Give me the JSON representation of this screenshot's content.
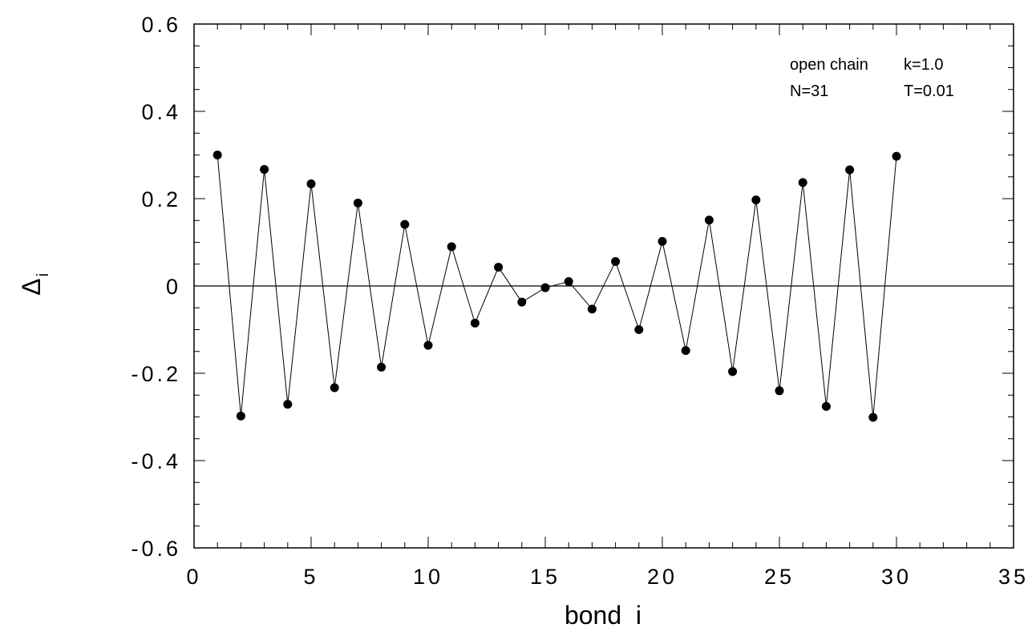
{
  "chart_data": {
    "type": "line",
    "xlabel": "bond  i",
    "ylabel": "Δ",
    "ylabel_subscript": "i",
    "xlim": [
      0,
      35
    ],
    "ylim": [
      -0.6,
      0.6
    ],
    "x_ticks": [
      0,
      5,
      10,
      15,
      20,
      25,
      30,
      35
    ],
    "x_tick_labels": [
      "0",
      "5",
      "10",
      "15",
      "20",
      "25",
      "30",
      "35"
    ],
    "y_ticks": [
      0.6,
      0.4,
      0.2,
      0,
      -0.2,
      -0.4,
      -0.6
    ],
    "y_tick_labels": [
      "0.6",
      "0.4",
      "0.2",
      "0",
      "-0.2",
      "-0.4",
      "-0.6"
    ],
    "grid": false,
    "reference_line_y": 0,
    "annotations": [
      "open chain",
      "k=1.0",
      "N=31",
      "T=0.01"
    ],
    "series": [
      {
        "marker": "filled-circle",
        "color": "#000000",
        "x": [
          1,
          2,
          3,
          4,
          5,
          6,
          7,
          8,
          9,
          10,
          11,
          12,
          13,
          14,
          15,
          16,
          17,
          18,
          19,
          20,
          21,
          22,
          23,
          24,
          25,
          26,
          27,
          28,
          29,
          30
        ],
        "y": [
          0.3,
          -0.298,
          0.267,
          -0.271,
          0.234,
          -0.233,
          0.19,
          -0.186,
          0.141,
          -0.136,
          0.09,
          -0.085,
          0.043,
          -0.037,
          -0.004,
          0.01,
          -0.053,
          0.056,
          -0.1,
          0.102,
          -0.148,
          0.151,
          -0.196,
          0.197,
          -0.24,
          0.237,
          -0.276,
          0.266,
          -0.301,
          0.297
        ]
      }
    ]
  }
}
